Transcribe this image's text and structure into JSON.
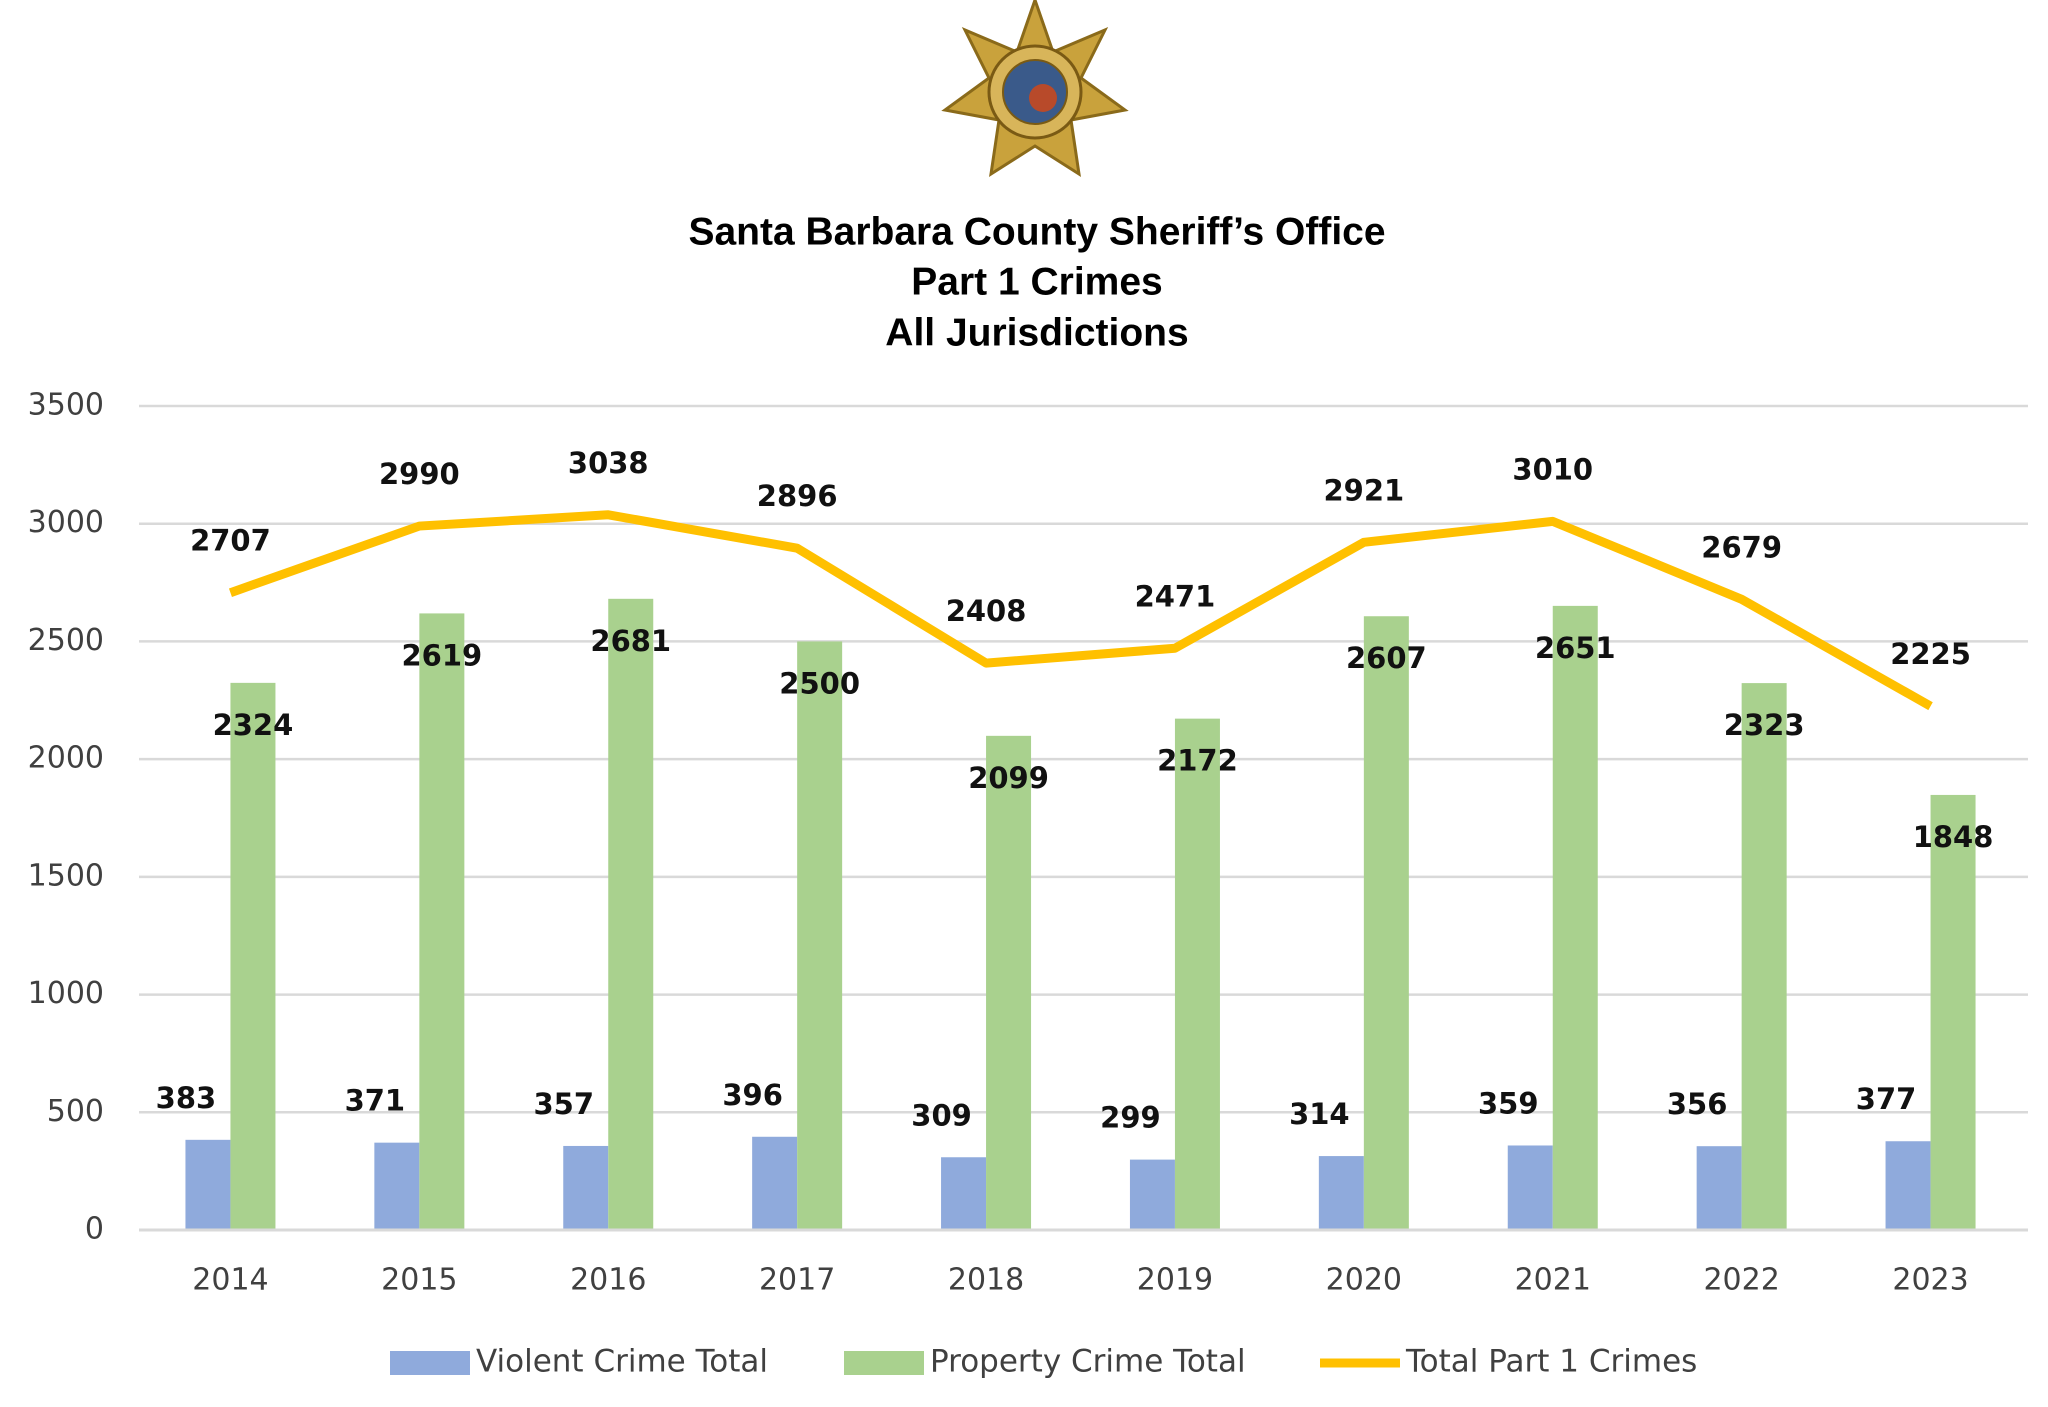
{
  "chart_data": {
    "type": "bar",
    "title": [
      "Santa Barbara County Sheriff’s Office",
      "Part 1 Crimes",
      "All Jurisdictions"
    ],
    "categories": [
      "2014",
      "2015",
      "2016",
      "2017",
      "2018",
      "2019",
      "2020",
      "2021",
      "2022",
      "2023"
    ],
    "series": [
      {
        "name": "Violent Crime Total",
        "type": "bar",
        "color": "#8faadc",
        "values": [
          383,
          371,
          357,
          396,
          309,
          299,
          314,
          359,
          356,
          377
        ]
      },
      {
        "name": "Property Crime Total",
        "type": "bar",
        "color": "#a9d18e",
        "values": [
          2324,
          2619,
          2681,
          2500,
          2099,
          2172,
          2607,
          2651,
          2323,
          1848
        ]
      },
      {
        "name": "Total Part 1 Crimes",
        "type": "line",
        "color": "#ffc000",
        "values": [
          2707,
          2990,
          3038,
          2896,
          2408,
          2471,
          2921,
          3010,
          2679,
          2225
        ]
      }
    ],
    "ylim": [
      0,
      3500
    ],
    "yticks": [
      0,
      500,
      1000,
      1500,
      2000,
      2500,
      3000,
      3500
    ],
    "grid": true,
    "legend": "bottom"
  }
}
